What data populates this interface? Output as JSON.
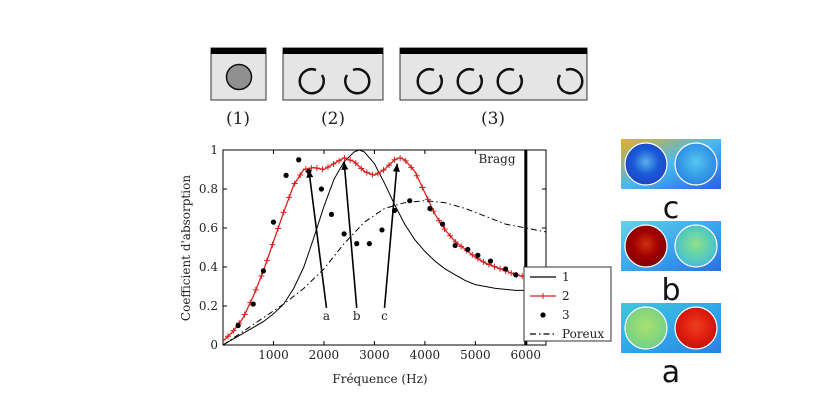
{
  "samples": [
    {
      "label": "(1)",
      "rings": 1,
      "filled": true
    },
    {
      "label": "(2)",
      "rings": 2,
      "filled": false
    },
    {
      "label": "(3)",
      "rings": 4,
      "filled": false
    }
  ],
  "chart_data": {
    "type": "line",
    "xlabel": "Fréquence (Hz)",
    "ylabel": "Coefficient d'absorption",
    "xlim": [
      0,
      6400
    ],
    "ylim": [
      0,
      1
    ],
    "xticks": [
      1000,
      2000,
      3000,
      4000,
      5000,
      6000
    ],
    "yticks": [
      0,
      0.2,
      0.4,
      0.6,
      0.8,
      1
    ],
    "xtick_labels": [
      "1000",
      "2000",
      "3000",
      "4000",
      "5000",
      "6000"
    ],
    "ytick_labels": [
      "0",
      "0.2",
      "0.4",
      "0.6",
      "0.8",
      "1"
    ],
    "grid": false,
    "legend_position": "bottom-right",
    "bragg": {
      "x": 6000,
      "label": "Bragg"
    },
    "series": [
      {
        "name": "1",
        "style": "solid",
        "color": "#000000",
        "x": [
          0,
          200,
          400,
          600,
          800,
          1000,
          1200,
          1400,
          1600,
          1800,
          2000,
          2200,
          2400,
          2600,
          2700,
          2800,
          3000,
          3200,
          3400,
          3600,
          3800,
          4000,
          4200,
          4400,
          4600,
          4800,
          5000,
          5200,
          5400,
          5600,
          5800,
          6000
        ],
        "y": [
          0.0,
          0.03,
          0.06,
          0.09,
          0.12,
          0.16,
          0.21,
          0.29,
          0.4,
          0.55,
          0.71,
          0.85,
          0.94,
          0.99,
          1.0,
          0.99,
          0.93,
          0.83,
          0.72,
          0.62,
          0.54,
          0.48,
          0.43,
          0.39,
          0.36,
          0.33,
          0.31,
          0.3,
          0.29,
          0.285,
          0.28,
          0.28
        ]
      },
      {
        "name": "2",
        "style": "solid-plus",
        "color": "#d62020",
        "x": [
          0,
          200,
          400,
          600,
          800,
          1000,
          1200,
          1400,
          1600,
          1800,
          2000,
          2200,
          2400,
          2600,
          2800,
          3000,
          3200,
          3400,
          3500,
          3600,
          3800,
          4000,
          4200,
          4400,
          4600,
          4800,
          5000,
          5200,
          5400,
          5600,
          5800,
          6000,
          6200
        ],
        "y": [
          0.02,
          0.07,
          0.14,
          0.25,
          0.38,
          0.53,
          0.68,
          0.82,
          0.9,
          0.91,
          0.9,
          0.93,
          0.96,
          0.94,
          0.89,
          0.87,
          0.9,
          0.95,
          0.96,
          0.95,
          0.89,
          0.78,
          0.67,
          0.59,
          0.53,
          0.49,
          0.45,
          0.42,
          0.4,
          0.38,
          0.36,
          0.35,
          0.34
        ]
      },
      {
        "name": "3",
        "style": "dots",
        "color": "#000000",
        "x": [
          300,
          600,
          800,
          1000,
          1250,
          1500,
          1700,
          1950,
          2150,
          2400,
          2650,
          2900,
          3150,
          3400,
          3700,
          4100,
          4350,
          4600,
          4850,
          5050,
          5300,
          5600,
          5800
        ],
        "y": [
          0.1,
          0.21,
          0.38,
          0.63,
          0.87,
          0.95,
          0.89,
          0.8,
          0.67,
          0.57,
          0.52,
          0.52,
          0.59,
          0.69,
          0.74,
          0.7,
          0.62,
          0.51,
          0.49,
          0.46,
          0.43,
          0.39,
          0.36
        ]
      },
      {
        "name": "Poreux",
        "style": "dash-dot",
        "color": "#000000",
        "x": [
          0,
          400,
          800,
          1200,
          1600,
          2000,
          2400,
          2800,
          3200,
          3600,
          4000,
          4400,
          4800,
          5200,
          5600,
          6000,
          6400
        ],
        "y": [
          0.0,
          0.07,
          0.14,
          0.21,
          0.29,
          0.39,
          0.52,
          0.63,
          0.7,
          0.73,
          0.74,
          0.73,
          0.7,
          0.66,
          0.62,
          0.6,
          0.58
        ]
      }
    ],
    "annotations": [
      {
        "label": "a",
        "x_from": 2050,
        "y_from": 0.19,
        "x_to": 1700,
        "y_to": 0.9
      },
      {
        "label": "b",
        "x_from": 2650,
        "y_from": 0.19,
        "x_to": 2400,
        "y_to": 0.94
      },
      {
        "label": "c",
        "x_from": 3200,
        "y_from": 0.19,
        "x_to": 3450,
        "y_to": 0.93
      }
    ]
  },
  "fields": [
    {
      "label": "c",
      "left_disc": [
        "#5ab0e8",
        "#1a5ad8",
        "#1e40c0"
      ],
      "right_disc": [
        "#56c8f0",
        "#3aa0e8",
        "#2a80e0"
      ],
      "bg": [
        "#e8b020",
        "#49b8f0",
        "#2a60e0"
      ]
    },
    {
      "label": "b",
      "left_disc": [
        "#d03010",
        "#a00000",
        "#7a0000"
      ],
      "right_disc": [
        "#90e08a",
        "#60d0b0",
        "#40b8e0"
      ],
      "bg": [
        "#6ad0e8",
        "#3aa8ec",
        "#2a70e0"
      ]
    },
    {
      "label": "a",
      "left_disc": [
        "#aadf70",
        "#8ad87a",
        "#70cc90"
      ],
      "right_disc": [
        "#f04020",
        "#e02010",
        "#c01008"
      ],
      "bg": [
        "#40c8d8",
        "#30a8e8",
        "#2a80e0"
      ]
    }
  ]
}
